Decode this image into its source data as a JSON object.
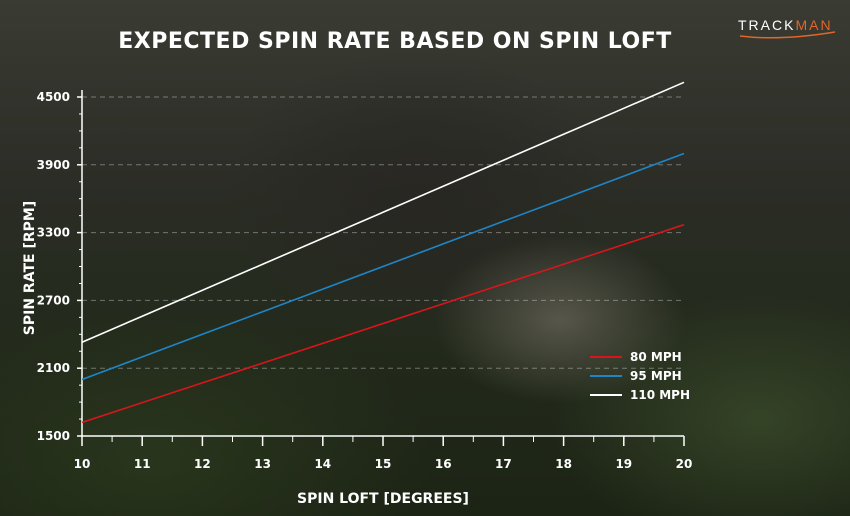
{
  "brand": {
    "logo_text_main": "TRACK",
    "logo_text_accent": "MAN",
    "accent_color": "#e0662a"
  },
  "chart_data": {
    "type": "line",
    "title": "EXPECTED SPIN RATE BASED ON SPIN LOFT",
    "xlabel": "SPIN LOFT [DEGREES]",
    "ylabel": "SPIN RATE [RPM]",
    "x": [
      10,
      11,
      12,
      13,
      14,
      15,
      16,
      17,
      18,
      19,
      20
    ],
    "x_ticks": [
      "10",
      "11",
      "12",
      "13",
      "14",
      "15",
      "16",
      "17",
      "18",
      "19",
      "20"
    ],
    "y_ticks": [
      "1500",
      "2100",
      "2700",
      "3300",
      "3900",
      "4500"
    ],
    "xlim": [
      10,
      20
    ],
    "ylim": [
      1500,
      4500
    ],
    "grid": "dashed horizontal at y ticks",
    "legend_position": "right",
    "series": [
      {
        "name": "80 MPH",
        "color": "#d9151b",
        "values": [
          1620,
          1795,
          1970,
          2145,
          2320,
          2495,
          2670,
          2845,
          3020,
          3195,
          3370
        ]
      },
      {
        "name": "95 MPH",
        "color": "#1e86c8",
        "values": [
          2000,
          2200,
          2400,
          2600,
          2800,
          3000,
          3200,
          3400,
          3600,
          3800,
          4000
        ]
      },
      {
        "name": "110 MPH",
        "color": "#ffffff",
        "values": [
          2330,
          2560,
          2790,
          3020,
          3250,
          3480,
          3710,
          3940,
          4170,
          4400,
          4630
        ]
      }
    ]
  }
}
